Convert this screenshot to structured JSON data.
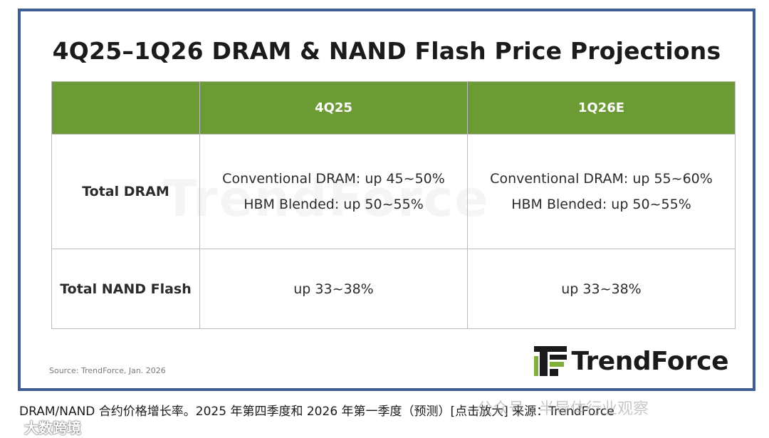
{
  "title": "4Q25–1Q26 DRAM & NAND Flash Price Projections",
  "table": {
    "columns": [
      "",
      "4Q25",
      "1Q26E"
    ],
    "rows": [
      {
        "label": "Total DRAM",
        "q4_lines": [
          "Conventional DRAM: up 45~50%",
          "HBM Blended: up 50~55%"
        ],
        "q1_lines": [
          "Conventional DRAM: up 55~60%",
          "HBM Blended: up 50~55%"
        ]
      },
      {
        "label": "Total NAND Flash",
        "q4_lines": [
          "up 33~38%"
        ],
        "q1_lines": [
          "up 33~38%"
        ]
      }
    ]
  },
  "watermark_text": "TrendForce",
  "source": "Source: TrendForce, Jan. 2026",
  "logo_text": "TrendForce",
  "caption": "DRAM/NAND 合约价格增长率。2025 年第四季度和 2026 年第一季度（预测）[点击放大] 来源：TrendForce",
  "overlay_wechat": "公众号 · 半导体行业观察",
  "overlay_brand": "大数跨境",
  "colors": {
    "header_green": "#6c9b35",
    "frame_blue": "#3d5f95",
    "logo_green": "#7fb03a"
  }
}
